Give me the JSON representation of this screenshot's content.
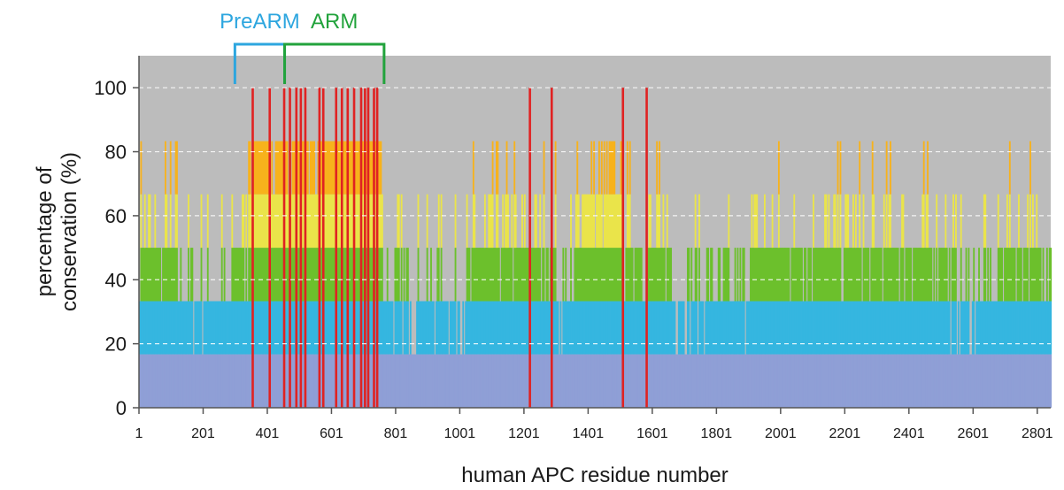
{
  "chart_data": {
    "type": "bar",
    "title": "",
    "xlabel": "human APC residue number",
    "ylabel_lines": [
      "percentage of",
      "conservation (%)"
    ],
    "xlim": [
      1,
      2843
    ],
    "ylim": [
      0,
      110
    ],
    "y_ticks": [
      0,
      20,
      40,
      60,
      80,
      100
    ],
    "x_ticks": [
      1,
      201,
      401,
      601,
      801,
      1001,
      1201,
      1401,
      1601,
      1801,
      2001,
      2201,
      2401,
      2601,
      2801
    ],
    "x_tick_labels": [
      "1",
      "201",
      "401",
      "601",
      "801",
      "1001",
      "1201",
      "1401",
      "1601",
      "1801",
      "2001",
      "2201",
      "2401",
      "2601",
      "2801"
    ],
    "gridlines": "y, dashed",
    "background": "#bcbcbc",
    "levels": [
      16.7,
      33.3,
      50,
      66.7,
      83.3,
      100
    ],
    "level_colors": {
      "16.7": "#8f9fd6",
      "33.3": "#35b6e0",
      "50": "#6cc02c",
      "66.7": "#eae44a",
      "83.3": "#f7b21c",
      "100": "#e02222"
    },
    "bands": [
      {
        "from": 1,
        "to": 120,
        "level": 50
      },
      {
        "from": 120,
        "to": 290,
        "level": 33.3
      },
      {
        "from": 290,
        "to": 340,
        "level": 50
      },
      {
        "from": 340,
        "to": 440,
        "level": 83.3
      },
      {
        "from": 440,
        "to": 760,
        "level": 83.3
      },
      {
        "from": 760,
        "to": 1040,
        "level": 33.3
      },
      {
        "from": 1040,
        "to": 1120,
        "level": 50
      },
      {
        "from": 1120,
        "to": 1300,
        "level": 50
      },
      {
        "from": 1300,
        "to": 1360,
        "level": 33.3
      },
      {
        "from": 1360,
        "to": 1500,
        "level": 66.7
      },
      {
        "from": 1500,
        "to": 1660,
        "level": 50
      },
      {
        "from": 1660,
        "to": 1900,
        "level": 33.3
      },
      {
        "from": 1900,
        "to": 2080,
        "level": 50
      },
      {
        "from": 2080,
        "to": 2300,
        "level": 50
      },
      {
        "from": 2300,
        "to": 2520,
        "level": 50
      },
      {
        "from": 2520,
        "to": 2680,
        "level": 33.3
      },
      {
        "from": 2680,
        "to": 2843,
        "level": 50
      }
    ],
    "peaks_100": [
      352,
      405,
      450,
      468,
      488,
      502,
      516,
      560,
      572,
      612,
      630,
      648,
      668,
      690,
      702,
      712,
      730,
      740,
      1216,
      1284,
      1506,
      1580
    ],
    "regions": [
      {
        "label": "PreARM",
        "from": 300,
        "to": 455,
        "color": "#2da6df"
      },
      {
        "label": "ARM",
        "from": 455,
        "to": 765,
        "color": "#22a33c"
      }
    ]
  }
}
